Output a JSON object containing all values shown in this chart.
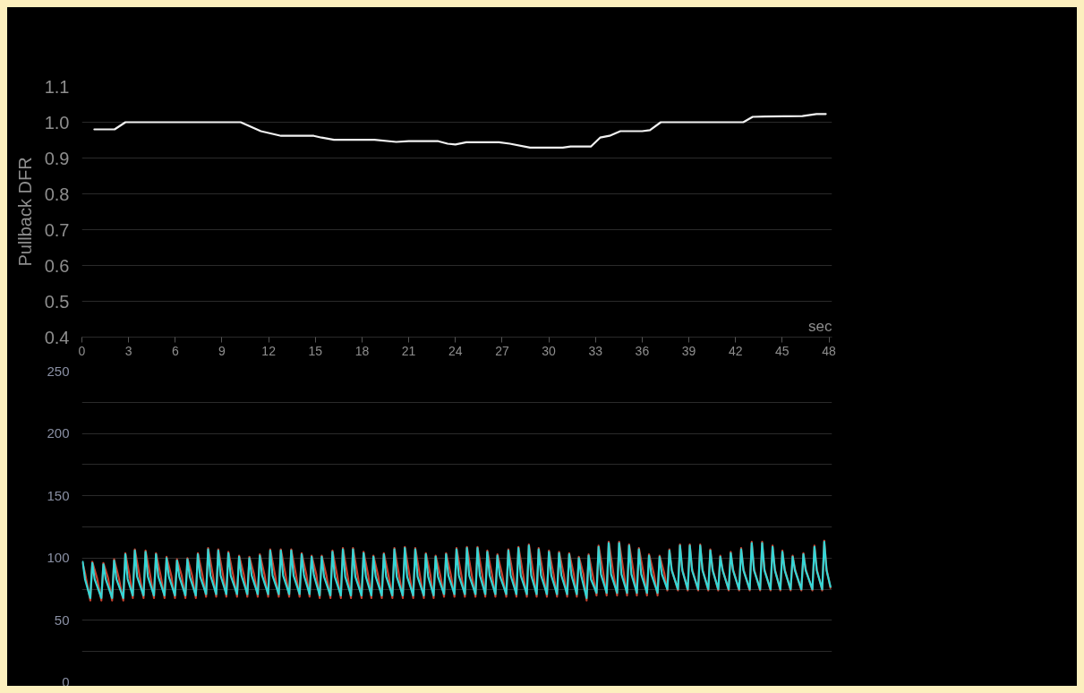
{
  "chart_data": [
    {
      "type": "line",
      "ylabel": "Pullback DFR",
      "xlabel": "sec",
      "x": [
        0.8,
        2.1,
        2.8,
        10.2,
        11.5,
        12.8,
        14.9,
        15.4,
        16.2,
        18.8,
        20.2,
        21.0,
        22.9,
        23.5,
        24.0,
        24.7,
        26.8,
        27.5,
        28.8,
        30.9,
        31.4,
        32.7,
        33.3,
        33.9,
        34.6,
        36.0,
        36.5,
        37.2,
        42.5,
        43.1,
        43.9,
        46.3,
        47.2,
        47.8
      ],
      "series": [
        {
          "color": "#f2f2f2",
          "values": [
            0.98,
            0.98,
            1.0,
            1.0,
            0.975,
            0.962,
            0.962,
            0.957,
            0.951,
            0.951,
            0.945,
            0.947,
            0.947,
            0.94,
            0.938,
            0.944,
            0.944,
            0.94,
            0.929,
            0.929,
            0.932,
            0.932,
            0.957,
            0.962,
            0.975,
            0.975,
            0.978,
            1.0,
            1.0,
            1.015,
            1.016,
            1.017,
            1.023,
            1.023
          ]
        }
      ],
      "xlim": [
        0,
        48.2
      ],
      "xticks": [
        0,
        3,
        6,
        9,
        12,
        15,
        18,
        21,
        24,
        27,
        30,
        33,
        36,
        39,
        42,
        45,
        48
      ],
      "ylim": [
        0.4,
        1.1
      ],
      "yticks": [
        0.4,
        0.5,
        0.6,
        0.7,
        0.8,
        0.9,
        {
          "value": 1,
          "label": "1.0"
        },
        1.1
      ],
      "grid": "y"
    },
    {
      "type": "line",
      "x": [
        0.05,
        0.2,
        0.54,
        0.67,
        0.82,
        1.25,
        1.38,
        1.53,
        1.94,
        2.07,
        2.22,
        2.66,
        2.79,
        2.94,
        3.27,
        3.4,
        3.55,
        3.96,
        4.09,
        4.24,
        4.63,
        4.76,
        4.91,
        5.31,
        5.44,
        5.59,
        5.98,
        6.11,
        6.26,
        6.65,
        6.78,
        6.93,
        7.32,
        7.45,
        7.6,
        7.98,
        8.11,
        8.26,
        8.63,
        8.76,
        8.91,
        9.28,
        9.41,
        9.56,
        9.97,
        10.1,
        10.25,
        10.63,
        10.76,
        10.91,
        11.3,
        11.43,
        11.58,
        11.97,
        12.1,
        12.25,
        12.65,
        12.78,
        12.93,
        13.32,
        13.45,
        13.6,
        13.99,
        14.12,
        14.27,
        14.63,
        14.76,
        14.91,
        15.28,
        15.41,
        15.56,
        15.97,
        16.1,
        16.25,
        16.64,
        16.77,
        16.92,
        17.29,
        17.42,
        17.57,
        17.97,
        18.1,
        18.25,
        18.6,
        18.73,
        18.88,
        19.27,
        19.4,
        19.55,
        19.95,
        20.08,
        20.23,
        20.62,
        20.75,
        20.9,
        21.29,
        21.42,
        21.57,
        21.97,
        22.1,
        22.25,
        22.6,
        22.73,
        22.88,
        23.27,
        23.4,
        23.55,
        23.94,
        24.07,
        24.22,
        24.61,
        24.74,
        24.89,
        25.29,
        25.42,
        25.57,
        25.92,
        26.05,
        26.2,
        26.57,
        26.7,
        26.85,
        27.27,
        27.4,
        27.55,
        27.92,
        28.05,
        28.2,
        28.59,
        28.72,
        28.87,
        29.22,
        29.35,
        29.5,
        29.88,
        30.01,
        30.16,
        30.53,
        30.66,
        30.81,
        31.18,
        31.31,
        31.46,
        31.8,
        31.93,
        32.08,
        32.43,
        32.56,
        32.71,
        33.07,
        33.2,
        33.35,
        33.72,
        33.85,
        34.0,
        34.39,
        34.52,
        34.67,
        35.03,
        35.16,
        35.31,
        35.66,
        35.79,
        35.94,
        36.31,
        36.44,
        36.59,
        36.99,
        37.12,
        37.27,
        37.62,
        37.75,
        37.9,
        38.3,
        38.43,
        38.58,
        38.93,
        39.06,
        39.21,
        39.6,
        39.73,
        39.88,
        40.25,
        40.38,
        40.53,
        40.89,
        41.02,
        41.17,
        41.56,
        41.69,
        41.84,
        42.23,
        42.36,
        42.51,
        42.91,
        43.04,
        43.19,
        43.58,
        43.71,
        43.86,
        44.25,
        44.38,
        44.53,
        44.88,
        45.01,
        45.16,
        45.54,
        45.67,
        45.82,
        46.23,
        46.36,
        46.51,
        46.94,
        47.07,
        47.22,
        47.57,
        47.7,
        47.85,
        48.1
      ],
      "series": [
        {
          "color": "#c9432f",
          "x": [
            0.05,
            0.2,
            0.54,
            0.67,
            0.97,
            1.25,
            1.38,
            1.68,
            1.94,
            2.07,
            2.37,
            2.66,
            2.79,
            3.09,
            3.27,
            3.4,
            3.7,
            3.96,
            4.09,
            4.39,
            4.63,
            4.76,
            5.06,
            5.31,
            5.44,
            5.74,
            5.98,
            6.11,
            6.41,
            6.65,
            6.78,
            7.08,
            7.32,
            7.45,
            7.75,
            7.98,
            8.11,
            8.41,
            8.63,
            8.76,
            9.06,
            9.28,
            9.41,
            9.71,
            9.97,
            10.1,
            10.4,
            10.63,
            10.76,
            11.06,
            11.3,
            11.43,
            11.73,
            11.97,
            12.1,
            12.4,
            12.65,
            12.78,
            13.08,
            13.32,
            13.45,
            13.75,
            13.99,
            14.12,
            14.42,
            14.63,
            14.76,
            15.06,
            15.28,
            15.41,
            15.71,
            15.97,
            16.1,
            16.4,
            16.64,
            16.77,
            17.07,
            17.29,
            17.42,
            17.72,
            17.97,
            18.1,
            18.4,
            18.6,
            18.73,
            19.03,
            19.27,
            19.4,
            19.7,
            19.95,
            20.08,
            20.38,
            20.62,
            20.75,
            21.05,
            21.29,
            21.42,
            21.72,
            21.97,
            22.1,
            22.4,
            22.6,
            22.73,
            23.03,
            23.27,
            23.4,
            23.7,
            23.94,
            24.07,
            24.37,
            24.61,
            24.74,
            25.04,
            25.29,
            25.42,
            25.72,
            25.92,
            26.05,
            26.35,
            26.57,
            26.7,
            27.0,
            27.27,
            27.4,
            27.7,
            27.92,
            28.05,
            28.35,
            28.59,
            28.72,
            29.02,
            29.22,
            29.35,
            29.65,
            29.88,
            30.01,
            30.31,
            30.53,
            30.66,
            30.96,
            31.18,
            31.31,
            31.61,
            31.8,
            31.93,
            32.23,
            32.43,
            32.56,
            32.86,
            33.07,
            33.2,
            33.5,
            33.72,
            33.85,
            34.15,
            34.39,
            34.52,
            34.82,
            35.03,
            35.16,
            35.46,
            35.66,
            35.79,
            36.09,
            36.31,
            36.44,
            36.74,
            36.99,
            37.12,
            37.42,
            37.62,
            37.75,
            37.9,
            38.3,
            38.43,
            38.58,
            38.93,
            39.06,
            39.21,
            39.6,
            39.73,
            39.88,
            40.25,
            40.38,
            40.53,
            40.89,
            41.02,
            41.17,
            41.56,
            41.69,
            41.84,
            42.23,
            42.36,
            42.51,
            42.91,
            43.04,
            43.19,
            43.58,
            43.71,
            43.86,
            44.25,
            44.38,
            44.53,
            44.88,
            45.01,
            45.16,
            45.54,
            45.67,
            45.82,
            46.23,
            46.36,
            46.51,
            46.94,
            47.07,
            47.22,
            47.57,
            47.7,
            47.85,
            48.1
          ],
          "values": [
            96,
            88,
            66,
            97,
            84,
            66,
            96,
            84,
            66,
            99,
            84,
            66,
            104,
            84,
            68,
            107,
            86,
            68,
            106,
            86,
            68,
            104,
            86,
            68,
            101,
            86,
            68,
            99,
            86,
            68,
            100,
            86,
            68,
            104,
            86,
            69,
            108,
            87,
            69,
            107,
            87,
            69,
            105,
            87,
            69,
            102,
            87,
            69,
            101,
            87,
            69,
            103,
            87,
            69,
            107,
            87,
            69,
            107,
            87,
            69,
            107,
            87,
            69,
            104,
            87,
            69,
            102,
            87,
            68,
            102,
            86,
            68,
            106,
            86,
            68,
            108,
            86,
            68,
            108,
            86,
            68,
            105,
            86,
            68,
            102,
            86,
            68,
            104,
            86,
            68,
            108,
            86,
            68,
            109,
            86,
            68,
            108,
            86,
            68,
            104,
            86,
            68,
            102,
            86,
            69,
            104,
            87,
            69,
            108,
            87,
            69,
            109,
            87,
            69,
            109,
            87,
            69,
            106,
            87,
            69,
            103,
            87,
            69,
            107,
            87,
            69,
            109,
            87,
            69,
            111,
            87,
            69,
            108,
            87,
            69,
            106,
            87,
            69,
            105,
            87,
            69,
            104,
            87,
            69,
            101,
            87,
            66,
            103,
            84,
            70,
            110,
            88,
            70,
            113,
            88,
            70,
            113,
            88,
            70,
            111,
            88,
            70,
            108,
            88,
            70,
            103,
            88,
            70,
            102,
            88,
            74,
            107,
            91,
            74,
            111,
            91,
            74,
            111,
            91,
            74,
            111,
            91,
            74,
            107,
            91,
            74,
            102,
            91,
            74,
            105,
            91,
            74,
            108,
            91,
            74,
            113,
            91,
            74,
            113,
            91,
            74,
            110,
            91,
            74,
            106,
            91,
            74,
            102,
            91,
            74,
            104,
            91,
            74,
            110,
            91,
            74,
            114,
            91,
            76
          ]
        },
        {
          "color": "#35d6d6",
          "values": [
            97,
            83,
            68,
            96,
            83,
            68,
            95,
            83,
            68,
            98,
            83,
            68,
            103,
            83,
            70,
            106,
            85,
            70,
            105,
            85,
            70,
            103,
            85,
            70,
            100,
            85,
            70,
            98,
            85,
            70,
            99,
            85,
            70,
            103,
            85,
            71,
            107,
            86,
            71,
            106,
            86,
            71,
            104,
            86,
            71,
            101,
            86,
            71,
            100,
            86,
            71,
            102,
            86,
            71,
            106,
            86,
            71,
            106,
            86,
            71,
            106,
            86,
            71,
            103,
            86,
            71,
            101,
            86,
            70,
            101,
            85,
            70,
            105,
            85,
            70,
            107,
            85,
            70,
            107,
            85,
            70,
            104,
            85,
            70,
            101,
            85,
            70,
            103,
            85,
            70,
            107,
            85,
            70,
            108,
            85,
            70,
            107,
            85,
            70,
            103,
            85,
            70,
            101,
            85,
            71,
            103,
            86,
            71,
            107,
            86,
            71,
            108,
            86,
            71,
            108,
            86,
            71,
            105,
            86,
            71,
            102,
            86,
            71,
            106,
            86,
            71,
            108,
            86,
            71,
            110,
            86,
            71,
            107,
            86,
            71,
            105,
            86,
            71,
            104,
            86,
            71,
            103,
            86,
            71,
            100,
            86,
            68,
            102,
            83,
            72,
            109,
            87,
            72,
            112,
            87,
            72,
            112,
            87,
            72,
            110,
            87,
            72,
            107,
            87,
            72,
            102,
            87,
            72,
            101,
            87,
            75,
            106,
            90,
            75,
            110,
            90,
            75,
            110,
            90,
            75,
            110,
            90,
            75,
            106,
            90,
            75,
            101,
            90,
            75,
            104,
            90,
            75,
            107,
            90,
            75,
            112,
            90,
            75,
            112,
            90,
            75,
            109,
            90,
            75,
            105,
            90,
            75,
            101,
            90,
            75,
            103,
            90,
            75,
            109,
            90,
            75,
            113,
            90,
            77
          ]
        }
      ],
      "xlim": [
        0,
        48.2
      ],
      "ylim": [
        0,
        250
      ],
      "yticks": [
        0,
        {
          "value": 25,
          "label": null
        },
        50,
        {
          "value": 75,
          "label": null
        },
        100,
        {
          "value": 125,
          "label": null
        },
        150,
        {
          "value": 175,
          "label": null
        },
        200,
        {
          "value": 225,
          "label": null
        },
        250
      ],
      "grid": "y",
      "tick_labels": "y"
    }
  ]
}
